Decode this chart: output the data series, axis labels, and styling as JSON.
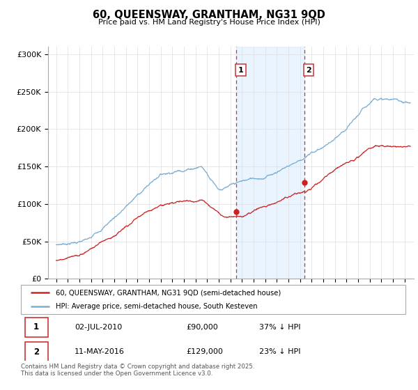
{
  "title": "60, QUEENSWAY, GRANTHAM, NG31 9QD",
  "subtitle": "Price paid vs. HM Land Registry's House Price Index (HPI)",
  "ylim": [
    0,
    310000
  ],
  "yticks": [
    0,
    50000,
    100000,
    150000,
    200000,
    250000,
    300000
  ],
  "ytick_labels": [
    "£0",
    "£50K",
    "£100K",
    "£150K",
    "£200K",
    "£250K",
    "£300K"
  ],
  "hpi_color": "#7aadd4",
  "price_color": "#cc2222",
  "sale1_x": 2010.5,
  "sale1_price": 90000,
  "sale2_x": 2016.37,
  "sale2_price": 129000,
  "vline_color": "#cc3333",
  "shade_color": "#ddeeff",
  "legend_label_price": "60, QUEENSWAY, GRANTHAM, NG31 9QD (semi-detached house)",
  "legend_label_hpi": "HPI: Average price, semi-detached house, South Kesteven",
  "table_row1": [
    "1",
    "02-JUL-2010",
    "£90,000",
    "37% ↓ HPI"
  ],
  "table_row2": [
    "2",
    "11-MAY-2016",
    "£129,000",
    "23% ↓ HPI"
  ],
  "footnote": "Contains HM Land Registry data © Crown copyright and database right 2025.\nThis data is licensed under the Open Government Licence v3.0.",
  "bg_color": "#ffffff",
  "grid_color": "#dddddd",
  "xlim_left": 1994.3,
  "xlim_right": 2025.8
}
